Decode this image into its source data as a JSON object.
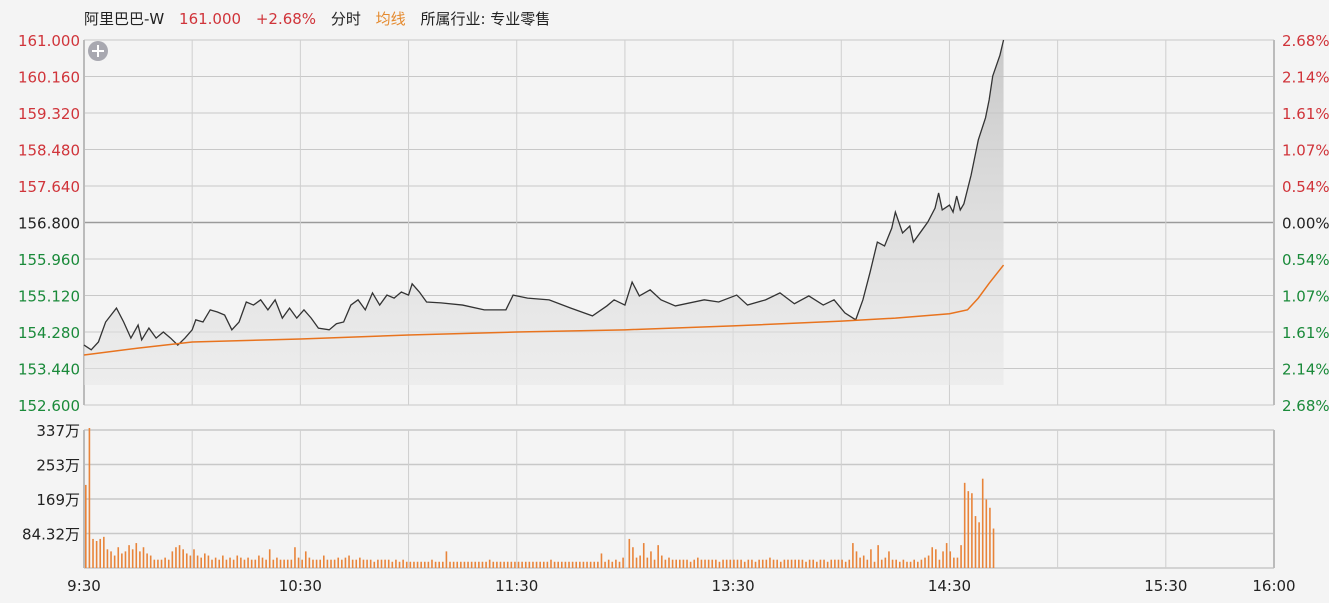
{
  "header": {
    "name": "阿里巴巴-W",
    "price": "161.000",
    "change": "+2.68%",
    "mode": "分时",
    "avg_label": "均线",
    "industry": "所属行业: 专业零售"
  },
  "colors": {
    "up": "#d0343a",
    "down": "#1a8a3a",
    "flat": "#222222",
    "price_line": "#333333",
    "avg_line": "#e8731e",
    "volume": "#e8843a"
  },
  "icons": {
    "zoom": "plus-circle-icon"
  },
  "chart_data": {
    "type": "line",
    "title": "",
    "prev_close": 156.8,
    "ylim": [
      152.6,
      161.0
    ],
    "y_ticks": [
      "161.000",
      "160.160",
      "159.320",
      "158.480",
      "157.640",
      "156.800",
      "155.960",
      "155.120",
      "154.280",
      "153.440",
      "152.600"
    ],
    "y_right_ticks": [
      "2.68%",
      "2.14%",
      "1.61%",
      "1.07%",
      "0.54%",
      "0.00%",
      "0.54%",
      "1.07%",
      "1.61%",
      "2.14%",
      "2.68%"
    ],
    "x_ticks": [
      "9:30",
      "10:30",
      "11:30",
      "13:30",
      "14:30",
      "15:30",
      "16:00"
    ],
    "sessions": [
      [
        "9:30",
        "12:00"
      ],
      [
        "13:00",
        "16:00"
      ]
    ],
    "grid": true,
    "price": [
      [
        "9:30",
        153.98
      ],
      [
        "9:32",
        153.87
      ],
      [
        "9:34",
        154.05
      ],
      [
        "9:36",
        154.51
      ],
      [
        "9:39",
        154.83
      ],
      [
        "9:41",
        154.51
      ],
      [
        "9:43",
        154.14
      ],
      [
        "9:45",
        154.44
      ],
      [
        "9:46",
        154.1
      ],
      [
        "9:48",
        154.37
      ],
      [
        "9:50",
        154.14
      ],
      [
        "9:52",
        154.28
      ],
      [
        "9:54",
        154.14
      ],
      [
        "9:56",
        153.98
      ],
      [
        "9:58",
        154.14
      ],
      [
        "10:00",
        154.33
      ],
      [
        "10:01",
        154.56
      ],
      [
        "10:03",
        154.51
      ],
      [
        "10:05",
        154.79
      ],
      [
        "10:07",
        154.74
      ],
      [
        "10:09",
        154.67
      ],
      [
        "10:11",
        154.33
      ],
      [
        "10:13",
        154.51
      ],
      [
        "10:15",
        154.97
      ],
      [
        "10:17",
        154.9
      ],
      [
        "10:19",
        155.02
      ],
      [
        "10:21",
        154.79
      ],
      [
        "10:23",
        155.02
      ],
      [
        "10:25",
        154.6
      ],
      [
        "10:27",
        154.83
      ],
      [
        "10:29",
        154.6
      ],
      [
        "10:31",
        154.79
      ],
      [
        "10:33",
        154.6
      ],
      [
        "10:35",
        154.37
      ],
      [
        "10:38",
        154.33
      ],
      [
        "10:40",
        154.47
      ],
      [
        "10:42",
        154.51
      ],
      [
        "10:44",
        154.9
      ],
      [
        "10:46",
        155.02
      ],
      [
        "10:48",
        154.79
      ],
      [
        "10:50",
        155.18
      ],
      [
        "10:52",
        154.9
      ],
      [
        "10:54",
        155.13
      ],
      [
        "10:56",
        155.06
      ],
      [
        "10:58",
        155.2
      ],
      [
        "11:00",
        155.13
      ],
      [
        "11:01",
        155.39
      ],
      [
        "11:03",
        155.2
      ],
      [
        "11:05",
        154.97
      ],
      [
        "11:09",
        154.95
      ],
      [
        "11:15",
        154.9
      ],
      [
        "11:21",
        154.79
      ],
      [
        "11:27",
        154.79
      ],
      [
        "11:29",
        155.13
      ],
      [
        "11:33",
        155.06
      ],
      [
        "11:39",
        155.02
      ],
      [
        "11:45",
        154.83
      ],
      [
        "11:51",
        154.65
      ],
      [
        "11:55",
        154.88
      ],
      [
        "11:57",
        155.02
      ],
      [
        "13:00",
        154.9
      ],
      [
        "13:02",
        155.43
      ],
      [
        "13:04",
        155.11
      ],
      [
        "13:07",
        155.25
      ],
      [
        "13:10",
        155.02
      ],
      [
        "13:14",
        154.88
      ],
      [
        "13:22",
        155.02
      ],
      [
        "13:26",
        154.97
      ],
      [
        "13:31",
        155.13
      ],
      [
        "13:34",
        154.9
      ],
      [
        "13:39",
        155.02
      ],
      [
        "13:43",
        155.18
      ],
      [
        "13:47",
        154.93
      ],
      [
        "13:51",
        155.11
      ],
      [
        "13:55",
        154.9
      ],
      [
        "13:58",
        155.02
      ],
      [
        "14:01",
        154.72
      ],
      [
        "14:04",
        154.56
      ],
      [
        "14:06",
        155.02
      ],
      [
        "14:08",
        155.66
      ],
      [
        "14:10",
        156.35
      ],
      [
        "14:12",
        156.26
      ],
      [
        "14:14",
        156.67
      ],
      [
        "14:15",
        157.04
      ],
      [
        "14:17",
        156.56
      ],
      [
        "14:19",
        156.72
      ],
      [
        "14:20",
        156.35
      ],
      [
        "14:22",
        156.58
      ],
      [
        "14:24",
        156.81
      ],
      [
        "14:26",
        157.13
      ],
      [
        "14:27",
        157.48
      ],
      [
        "14:28",
        157.09
      ],
      [
        "14:30",
        157.2
      ],
      [
        "14:31",
        157.04
      ],
      [
        "14:32",
        157.41
      ],
      [
        "14:33",
        157.09
      ],
      [
        "14:34",
        157.23
      ],
      [
        "14:36",
        157.89
      ],
      [
        "14:38",
        158.7
      ],
      [
        "14:40",
        159.21
      ],
      [
        "14:41",
        159.62
      ],
      [
        "14:42",
        160.17
      ],
      [
        "14:44",
        160.65
      ],
      [
        "14:45",
        161.0
      ]
    ],
    "avg": [
      [
        "9:30",
        153.75
      ],
      [
        "9:45",
        153.91
      ],
      [
        "10:00",
        154.05
      ],
      [
        "10:30",
        154.12
      ],
      [
        "11:00",
        154.21
      ],
      [
        "11:30",
        154.28
      ],
      [
        "13:00",
        154.33
      ],
      [
        "13:30",
        154.42
      ],
      [
        "14:00",
        154.53
      ],
      [
        "14:15",
        154.6
      ],
      [
        "14:30",
        154.7
      ],
      [
        "14:35",
        154.79
      ],
      [
        "14:38",
        155.06
      ],
      [
        "14:41",
        155.4
      ],
      [
        "14:45",
        155.82
      ]
    ],
    "volume_unit": "万",
    "volume_ticks": [
      "337万",
      "253万",
      "169万",
      "84.32万"
    ],
    "volume_ylim": [
      0,
      337
    ],
    "volume_morning": [
      200,
      337,
      70,
      65,
      70,
      75,
      45,
      40,
      30,
      50,
      35,
      40,
      55,
      45,
      60,
      40,
      50,
      35,
      30,
      20,
      20,
      20,
      25,
      20,
      40,
      50,
      55,
      45,
      35,
      30,
      45,
      30,
      25,
      35,
      30,
      20,
      25,
      20,
      30,
      20,
      25,
      20,
      30,
      25,
      20,
      25,
      20,
      20,
      30,
      25,
      20,
      45,
      20,
      25,
      20,
      20,
      20,
      20,
      50,
      25,
      20,
      40,
      25,
      20,
      20,
      20,
      30,
      20,
      20,
      20,
      25,
      20,
      25,
      30,
      20,
      20,
      25,
      20,
      20,
      20,
      15,
      20,
      20,
      20,
      20,
      15,
      20,
      15,
      20,
      15,
      15,
      15,
      15,
      15,
      15,
      15,
      20,
      15,
      15,
      15,
      40,
      15,
      15,
      15,
      15,
      15,
      15,
      15,
      15,
      15,
      15,
      15,
      20,
      15,
      15,
      15,
      15,
      15,
      15,
      15,
      15,
      15,
      15,
      15,
      15,
      15,
      15,
      15,
      15,
      20,
      15,
      15,
      15,
      15,
      15,
      15,
      15,
      15,
      15,
      15,
      15,
      15,
      15,
      35,
      15,
      20,
      15,
      20,
      15,
      25
    ],
    "volume_afternoon": [
      70,
      50,
      25,
      30,
      60,
      25,
      40,
      20,
      55,
      30,
      20,
      25,
      20,
      20,
      20,
      20,
      20,
      15,
      20,
      25,
      20,
      20,
      20,
      20,
      20,
      15,
      20,
      20,
      20,
      20,
      20,
      20,
      15,
      20,
      20,
      15,
      20,
      20,
      20,
      25,
      20,
      20,
      15,
      20,
      20,
      20,
      20,
      20,
      20,
      15,
      20,
      20,
      15,
      20,
      20,
      15,
      20,
      20,
      20,
      20,
      15,
      20,
      60,
      40,
      25,
      30,
      20,
      45,
      15,
      55,
      20,
      25,
      40,
      20,
      20,
      15,
      20,
      15,
      15,
      20,
      15,
      20,
      25,
      30,
      50,
      45,
      20,
      40,
      60,
      40,
      25,
      25,
      55,
      205,
      185,
      180,
      125,
      110,
      215,
      165,
      145,
      95
    ]
  }
}
